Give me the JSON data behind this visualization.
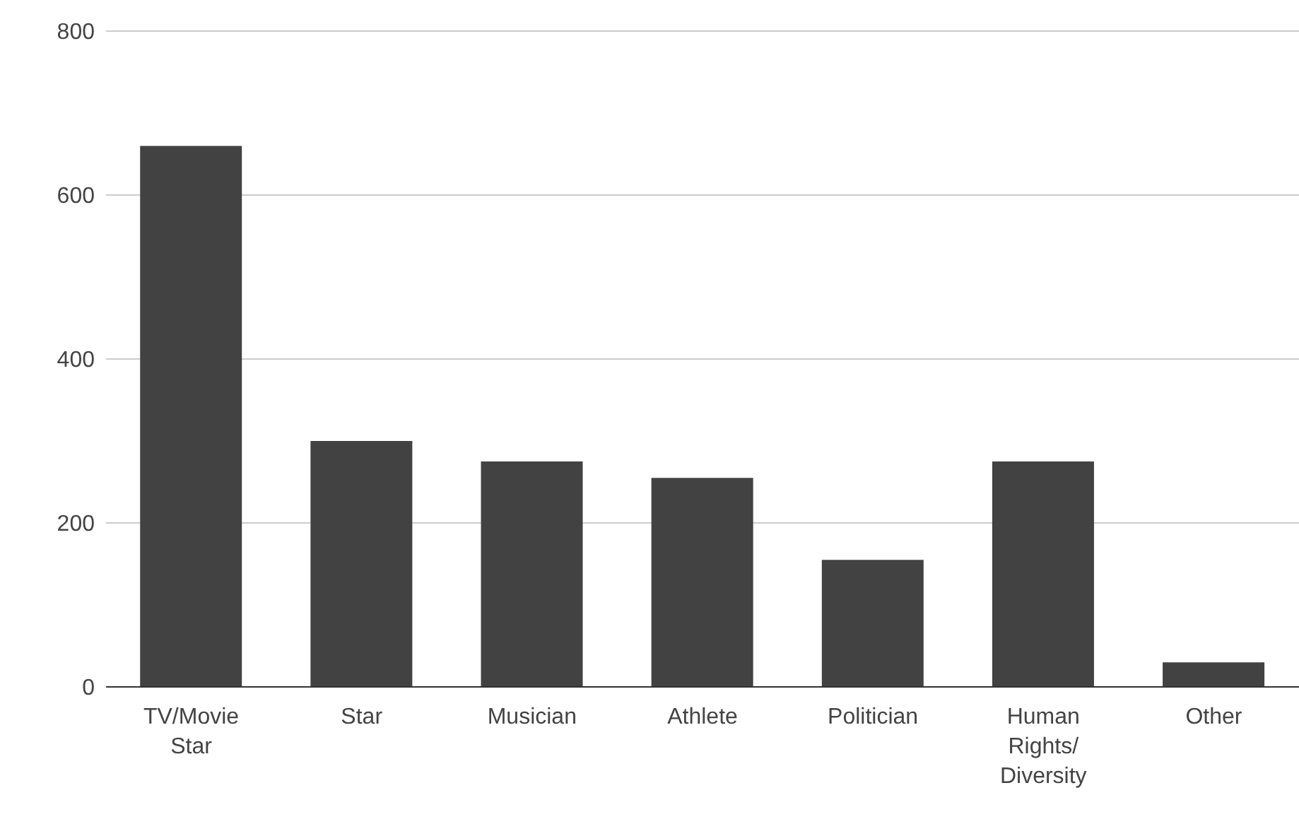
{
  "chart_data": {
    "type": "bar",
    "categories": [
      "TV/Movie Star",
      "Star",
      "Musician",
      "Athlete",
      "Politician",
      "Human Rights/ Diversity",
      "Other"
    ],
    "values": [
      660,
      300,
      275,
      255,
      155,
      275,
      30
    ],
    "color": "#424242",
    "ylim": [
      0,
      800
    ],
    "yticks": [
      0,
      200,
      400,
      600,
      800
    ],
    "grid": "y",
    "legend": false
  }
}
